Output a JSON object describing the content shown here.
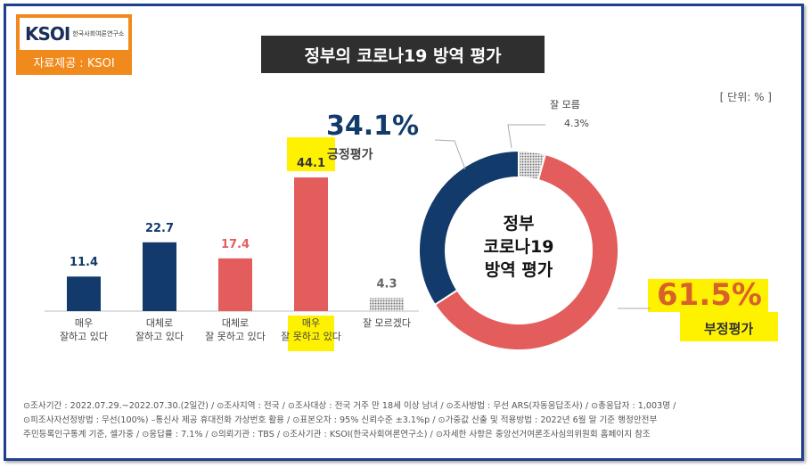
{
  "logo": {
    "mark": "KSOI",
    "subtitle": "한국사회여론연구소"
  },
  "source_label": "자료제공 : KSOI",
  "title": "정부의 코로나19 방역 평가",
  "unit_label": "[ 단위: % ]",
  "chart_data": [
    {
      "type": "bar",
      "categories": [
        "매우\n잘하고 있다",
        "대체로\n잘하고 있다",
        "대체로\n잘 못하고 있다",
        "매우\n잘 못하고 있다",
        "잘 모르겠다"
      ],
      "values": [
        11.4,
        22.7,
        17.4,
        44.1,
        4.3
      ],
      "colors": [
        "#123a6b",
        "#123a6b",
        "#e45d5d",
        "#e45d5d",
        "#9a9a9a"
      ],
      "highlighted": [
        3
      ]
    },
    {
      "type": "pie",
      "center_label": [
        "정부",
        "코로나19",
        "방역 평가"
      ],
      "slices": [
        {
          "label": "긍정평가",
          "value": 34.1,
          "display": "34.1%",
          "color": "#123a6b"
        },
        {
          "label": "부정평가",
          "value": 61.5,
          "display": "61.5%",
          "color": "#e45d5d"
        },
        {
          "label": "잘 모름",
          "value": 4.3,
          "display": "4.3%",
          "color": "#b0b0b0"
        }
      ]
    }
  ],
  "footer_lines": [
    "⊙조사기간 : 2022.07.29.~2022.07.30.(2일간) / ⊙조사지역 : 전국 / ⊙조사대상 : 전국 거주 만 18세 이상 남녀 / ⊙조사방법 : 무선 ARS(자동응답조사) / ⊙총응답자 : 1,003명 /",
    "⊙피조사자선정방법 : 무선(100%) –통신사 제공 휴대전화 가상번호 활용 / ⊙표본오차 : 95% 신뢰수준 ±3.1%p / ⊙가중값 산출 및 적용방법 : 2022년 6월 말 기준 행정안전부",
    "주민등록인구통계 기준, 셀가중 / ⊙응답률 : 7.1% / ⊙의뢰기관 : TBS / ⊙조사기관 : KSOI(한국사회여론연구소) / ⊙자세한 사항은 중앙선거여론조사심의위원회 홈페이지 참조"
  ]
}
